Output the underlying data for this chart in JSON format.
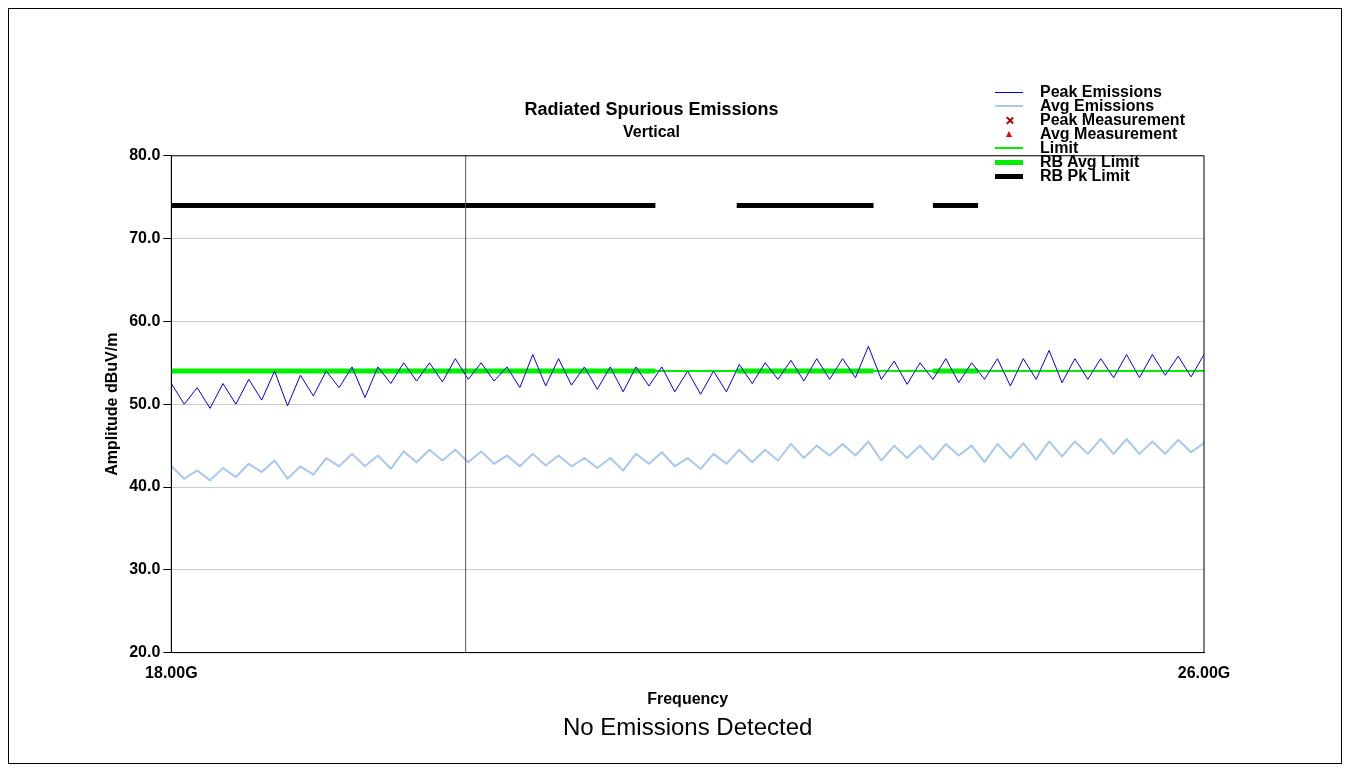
{
  "chart_data": {
    "type": "line",
    "title": "Radiated Spurious Emissions",
    "subtitle": "Vertical",
    "xlabel": "Frequency",
    "ylabel": "Amplitude dBuV/m",
    "annotations": [
      "No Emissions Detected"
    ],
    "xlim": [
      18,
      26
    ],
    "xticks": [
      {
        "value": 18,
        "label": "18.00G"
      },
      {
        "value": 26,
        "label": "26.00G"
      }
    ],
    "ylim": [
      20,
      80
    ],
    "yticks": [
      {
        "value": 20,
        "label": "20.0"
      },
      {
        "value": 30,
        "label": "30.0"
      },
      {
        "value": 40,
        "label": "40.0"
      },
      {
        "value": 50,
        "label": "50.0"
      },
      {
        "value": 60,
        "label": "60.0"
      },
      {
        "value": 70,
        "label": "70.0"
      },
      {
        "value": 80,
        "label": "80.0"
      }
    ],
    "grid": "y",
    "legend": "top right",
    "ref_lines": [
      {
        "axis": "x",
        "value": 20.28,
        "color": "#555555"
      }
    ],
    "series": [
      {
        "name": "Peak Emissions",
        "color": "#0000ee",
        "x": [
          18.0,
          18.1,
          18.2,
          18.3,
          18.4,
          18.5,
          18.6,
          18.7,
          18.8,
          18.9,
          19.0,
          19.1,
          19.2,
          19.3,
          19.4,
          19.5,
          19.6,
          19.7,
          19.8,
          19.9,
          20.0,
          20.1,
          20.2,
          20.3,
          20.4,
          20.5,
          20.6,
          20.7,
          20.8,
          20.9,
          21.0,
          21.1,
          21.2,
          21.3,
          21.4,
          21.5,
          21.6,
          21.7,
          21.8,
          21.9,
          22.0,
          22.1,
          22.2,
          22.3,
          22.4,
          22.5,
          22.6,
          22.7,
          22.8,
          22.9,
          23.0,
          23.1,
          23.2,
          23.3,
          23.4,
          23.5,
          23.6,
          23.7,
          23.8,
          23.9,
          24.0,
          24.1,
          24.2,
          24.3,
          24.4,
          24.5,
          24.6,
          24.7,
          24.8,
          24.9,
          25.0,
          25.1,
          25.2,
          25.3,
          25.4,
          25.5,
          25.6,
          25.7,
          25.8,
          25.9,
          26.0
        ],
        "values": [
          52.5,
          50.0,
          52.0,
          49.5,
          52.5,
          50.0,
          53.0,
          50.5,
          54.0,
          49.8,
          53.5,
          51.0,
          54.0,
          52.0,
          54.5,
          50.8,
          54.5,
          52.5,
          55.0,
          52.8,
          55.0,
          52.7,
          55.5,
          53.0,
          55.0,
          52.8,
          54.5,
          52.0,
          56.0,
          52.2,
          55.5,
          52.3,
          54.5,
          51.8,
          54.5,
          51.5,
          54.5,
          52.2,
          54.5,
          51.5,
          54.0,
          51.2,
          54.0,
          51.5,
          54.8,
          52.5,
          55.0,
          53.0,
          55.3,
          52.8,
          55.5,
          53.0,
          55.5,
          53.2,
          57.0,
          53.0,
          55.2,
          52.4,
          55.0,
          53.0,
          55.5,
          52.6,
          55.0,
          53.0,
          55.5,
          52.2,
          55.5,
          53.0,
          56.5,
          52.6,
          55.5,
          53.0,
          55.5,
          53.2,
          56.0,
          53.2,
          56.0,
          53.5,
          55.8,
          53.3,
          56.0
        ]
      },
      {
        "name": "Avg Emissions",
        "color": "#a8c8ee",
        "x": [
          18.0,
          18.1,
          18.2,
          18.3,
          18.4,
          18.5,
          18.6,
          18.7,
          18.8,
          18.9,
          19.0,
          19.1,
          19.2,
          19.3,
          19.4,
          19.5,
          19.6,
          19.7,
          19.8,
          19.9,
          20.0,
          20.1,
          20.2,
          20.3,
          20.4,
          20.5,
          20.6,
          20.7,
          20.8,
          20.9,
          21.0,
          21.1,
          21.2,
          21.3,
          21.4,
          21.5,
          21.6,
          21.7,
          21.8,
          21.9,
          22.0,
          22.1,
          22.2,
          22.3,
          22.4,
          22.5,
          22.6,
          22.7,
          22.8,
          22.9,
          23.0,
          23.1,
          23.2,
          23.3,
          23.4,
          23.5,
          23.6,
          23.7,
          23.8,
          23.9,
          24.0,
          24.1,
          24.2,
          24.3,
          24.4,
          24.5,
          24.6,
          24.7,
          24.8,
          24.9,
          25.0,
          25.1,
          25.2,
          25.3,
          25.4,
          25.5,
          25.6,
          25.7,
          25.8,
          25.9,
          26.0
        ],
        "values": [
          42.5,
          41.0,
          42.0,
          40.8,
          42.3,
          41.2,
          42.8,
          41.8,
          43.2,
          41.0,
          42.5,
          41.5,
          43.5,
          42.5,
          44.0,
          42.5,
          43.8,
          42.2,
          44.3,
          43.0,
          44.5,
          43.2,
          44.5,
          43.0,
          44.3,
          42.8,
          43.8,
          42.5,
          44.0,
          42.6,
          43.8,
          42.5,
          43.5,
          42.3,
          43.5,
          42.0,
          44.0,
          42.8,
          44.2,
          42.5,
          43.5,
          42.2,
          44.0,
          42.8,
          44.5,
          43.0,
          44.5,
          43.2,
          45.2,
          43.5,
          45.0,
          43.8,
          45.2,
          43.8,
          45.5,
          43.2,
          45.0,
          43.5,
          45.0,
          43.3,
          45.2,
          43.8,
          45.0,
          43.0,
          45.2,
          43.5,
          45.3,
          43.3,
          45.5,
          43.7,
          45.5,
          44.0,
          45.8,
          44.0,
          45.8,
          44.0,
          45.5,
          44.0,
          45.7,
          44.2,
          45.3
        ]
      },
      {
        "name": "Peak Measurement",
        "type": "scatter",
        "marker": "cross",
        "color": "#aa0000"
      },
      {
        "name": "Avg Measurement",
        "type": "scatter",
        "marker": "triangle",
        "color": "#ee0000"
      },
      {
        "name": "Limit",
        "color": "#00ee00",
        "x": [
          18,
          26
        ],
        "values": [
          54,
          54
        ]
      },
      {
        "name": "RB Avg Limit",
        "color": "#00ee00",
        "x": [
          18,
          21.75,
          22.0,
          22.38,
          23.44,
          23.6,
          23.9,
          24.25
        ],
        "values": [
          54,
          54,
          null,
          54,
          54,
          null,
          54,
          54
        ]
      },
      {
        "name": "RB Pk Limit",
        "color": "#000000",
        "x": [
          18,
          21.75,
          22.0,
          22.38,
          23.44,
          23.6,
          23.9,
          24.25
        ],
        "values": [
          74,
          74,
          null,
          74,
          74,
          null,
          74,
          74
        ]
      }
    ]
  }
}
